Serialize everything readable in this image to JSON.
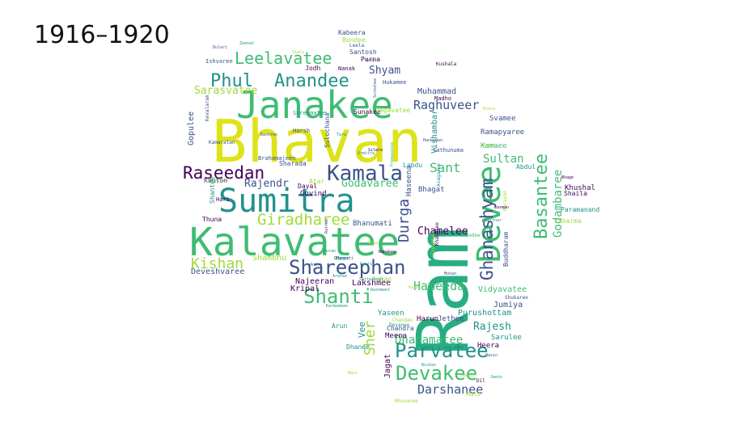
{
  "title": "1916–1920",
  "palette": {
    "dark_purple": "#440154",
    "indigo": "#3b528b",
    "teal": "#21918c",
    "green": "#3fbc73",
    "sea_green": "#27ad81",
    "lime": "#a0da39",
    "yellow": "#dde318"
  },
  "words": [
    {
      "text": "Bhavan",
      "color": "yellow"
    },
    {
      "text": "Ram",
      "color": "sea_green"
    },
    {
      "text": "Sumitra",
      "color": "teal"
    },
    {
      "text": "Kalavatee",
      "color": "green"
    },
    {
      "text": "Janakee",
      "color": "green"
    },
    {
      "text": "Devee",
      "color": "green"
    },
    {
      "text": "Kamala",
      "color": "indigo"
    },
    {
      "text": "Raseedan",
      "color": "dark_purple"
    },
    {
      "text": "Shareephan",
      "color": "indigo"
    },
    {
      "text": "Ghanashyam",
      "color": "indigo"
    },
    {
      "text": "Parvatee",
      "color": "teal"
    },
    {
      "text": "Devakee",
      "color": "green"
    },
    {
      "text": "Basantee",
      "color": "green"
    },
    {
      "text": "Shanti",
      "color": "green"
    },
    {
      "text": "Anandee",
      "color": "teal"
    },
    {
      "text": "Phul",
      "color": "teal"
    },
    {
      "text": "Leelavatee",
      "color": "green"
    },
    {
      "text": "Giradharee",
      "color": "lime"
    },
    {
      "text": "Kishan",
      "color": "lime"
    },
    {
      "text": "Durga",
      "color": "indigo"
    },
    {
      "text": "Darshanee",
      "color": "indigo"
    },
    {
      "text": "Hameeda",
      "color": "green"
    },
    {
      "text": "Raghuveer",
      "color": "indigo"
    },
    {
      "text": "Dhanamatee",
      "color": "green"
    },
    {
      "text": "Sant",
      "color": "green"
    },
    {
      "text": "Sultan",
      "color": "green"
    },
    {
      "text": "Godambaree",
      "color": "green"
    },
    {
      "text": "Chamelee",
      "color": "dark_purple"
    },
    {
      "text": "Rajendr",
      "color": "indigo"
    },
    {
      "text": "Godavaree",
      "color": "green"
    },
    {
      "text": "Sher",
      "color": "lime"
    },
    {
      "text": "Shyam",
      "color": "indigo"
    },
    {
      "text": "Rajesh",
      "color": "teal"
    },
    {
      "text": "Sarasvatee",
      "color": "lime"
    },
    {
      "text": "Gopulee",
      "color": "indigo"
    },
    {
      "text": "Vishambar",
      "color": "teal"
    },
    {
      "text": "Muhammad",
      "color": "indigo"
    },
    {
      "text": "Shambhu",
      "color": "lime"
    },
    {
      "text": "Deveshvaree",
      "color": "indigo"
    },
    {
      "text": "Najeeran",
      "color": "dark_purple"
    },
    {
      "text": "Kripal",
      "color": "dark_purple"
    },
    {
      "text": "Lakshmee",
      "color": "dark_purple"
    },
    {
      "text": "Vidyavatee",
      "color": "green"
    },
    {
      "text": "Purushottam",
      "color": "teal"
    },
    {
      "text": "Jumiya",
      "color": "indigo"
    },
    {
      "text": "Heera",
      "color": "dark_purple"
    },
    {
      "text": "Sarulee",
      "color": "teal"
    },
    {
      "text": "Jagat",
      "color": "dark_purple"
    },
    {
      "text": "Meena",
      "color": "dark_purple"
    },
    {
      "text": "Vee",
      "color": "teal"
    },
    {
      "text": "Yaseen",
      "color": "teal"
    },
    {
      "text": "Sohan",
      "color": "lime"
    },
    {
      "text": "Bhanumati",
      "color": "indigo"
    },
    {
      "text": "Govind",
      "color": "dark_purple"
    },
    {
      "text": "Atar",
      "color": "lime"
    },
    {
      "text": "Dayal",
      "color": "dark_purple"
    },
    {
      "text": "Sharada",
      "color": "indigo"
    },
    {
      "text": "Svamee",
      "color": "indigo"
    },
    {
      "text": "Ramapyaree",
      "color": "indigo"
    },
    {
      "text": "Kamaee",
      "color": "green"
    },
    {
      "text": "Abdul",
      "color": "teal"
    },
    {
      "text": "Khushal",
      "color": "dark_purple"
    },
    {
      "text": "Shaila",
      "color": "dark_purple"
    },
    {
      "text": "Paramanand",
      "color": "teal"
    },
    {
      "text": "Dharma",
      "color": "lime"
    },
    {
      "text": "Bhagat",
      "color": "indigo"
    },
    {
      "text": "Labdu",
      "color": "teal"
    },
    {
      "text": "Haseena",
      "color": "indigo"
    },
    {
      "text": "Kabeera",
      "color": "indigo"
    },
    {
      "text": "Bundee",
      "color": "lime"
    },
    {
      "text": "Leela",
      "color": "indigo"
    },
    {
      "text": "Santosh",
      "color": "indigo"
    },
    {
      "text": "Purna",
      "color": "dark_purple"
    },
    {
      "text": "Jodh",
      "color": "dark_purple"
    },
    {
      "text": "Nanak",
      "color": "dark_purple"
    },
    {
      "text": "Ishvaree",
      "color": "indigo"
    },
    {
      "text": "Hukamee",
      "color": "indigo"
    },
    {
      "text": "Sunakee",
      "color": "dark_purple"
    },
    {
      "text": "Jagavatee",
      "color": "lime"
    },
    {
      "text": "Shreematee",
      "color": "teal"
    },
    {
      "text": "Madho",
      "color": "dark_purple"
    },
    {
      "text": "Kevalaram",
      "color": "indigo"
    },
    {
      "text": "Kamaratan",
      "color": "indigo"
    },
    {
      "text": "Brahamajeen",
      "color": "indigo"
    },
    {
      "text": "Sujanee",
      "color": "lime"
    },
    {
      "text": "Kanton",
      "color": "indigo"
    },
    {
      "text": "Hari",
      "color": "dark_purple"
    },
    {
      "text": "Thuna",
      "color": "dark_purple"
    },
    {
      "text": "Shantee",
      "color": "teal"
    },
    {
      "text": "Chandra",
      "color": "indigo"
    },
    {
      "text": "Chandan",
      "color": "lime"
    },
    {
      "text": "Devanee",
      "color": "teal"
    },
    {
      "text": "Harun",
      "color": "dark_purple"
    },
    {
      "text": "Jethee",
      "color": "indigo"
    },
    {
      "text": "Dhanee",
      "color": "teal"
    },
    {
      "text": "Arun",
      "color": "teal"
    },
    {
      "text": "Meer",
      "color": "teal"
    },
    {
      "text": "Malo",
      "color": "lime"
    },
    {
      "text": "Dil",
      "color": "dark_purple"
    },
    {
      "text": "Bhavanee",
      "color": "lime"
    },
    {
      "text": "Kushala",
      "color": "dark_purple"
    },
    {
      "text": "Harsh",
      "color": "indigo"
    },
    {
      "text": "Sulochana",
      "color": "indigo"
    },
    {
      "text": "Tathunuma",
      "color": "indigo"
    },
    {
      "text": "Asagaree",
      "color": "teal"
    },
    {
      "text": "Narayan",
      "color": "lime"
    },
    {
      "text": "Buddharam",
      "color": "indigo"
    },
    {
      "text": "Shukaree",
      "color": "indigo"
    },
    {
      "text": "Khashtee",
      "color": "dark_purple"
    },
    {
      "text": "Jayantee",
      "color": "lime"
    },
    {
      "text": "Keedee",
      "color": "green"
    },
    {
      "text": "Satteshvar",
      "color": "teal"
    },
    {
      "text": "Urmitra",
      "color": "teal"
    },
    {
      "text": "Premavatee",
      "color": "green"
    },
    {
      "text": "Haneedan",
      "color": "indigo"
    },
    {
      "text": "Aasha",
      "color": "lime"
    },
    {
      "text": "Atara",
      "color": "lime"
    },
    {
      "text": "Saltnar",
      "color": "teal"
    },
    {
      "text": "Bhage",
      "color": "dark_purple"
    },
    {
      "text": "Sureshee",
      "color": "indigo"
    },
    {
      "text": "Dashree",
      "color": "indigo"
    },
    {
      "text": "Ratnee",
      "color": "indigo"
    },
    {
      "text": "Aratee",
      "color": "teal"
    },
    {
      "text": "Karmadeen",
      "color": "teal"
    },
    {
      "text": "Mani",
      "color": "lime"
    },
    {
      "text": "Dharmati",
      "color": "indigo"
    },
    {
      "text": "Puran",
      "color": "teal"
    },
    {
      "text": "Anita",
      "color": "indigo"
    },
    {
      "text": "Dashmeet",
      "color": "teal"
    },
    {
      "text": "Nanakee",
      "color": "dark_purple"
    },
    {
      "text": "Kajal",
      "color": "lime"
    },
    {
      "text": "Bishan",
      "color": "teal"
    },
    {
      "text": "Ganesh",
      "color": "lime"
    },
    {
      "text": "Hasin",
      "color": "indigo"
    },
    {
      "text": "Jeeto",
      "color": "teal"
    },
    {
      "text": "Laxman",
      "color": "dark_purple"
    },
    {
      "text": "Mohan",
      "color": "indigo"
    },
    {
      "text": "Gauri",
      "color": "teal"
    },
    {
      "text": "Rupa",
      "color": "lime"
    },
    {
      "text": "Sitara",
      "color": "dark_purple"
    },
    {
      "text": "Tara",
      "color": "teal"
    },
    {
      "text": "Usha",
      "color": "indigo"
    },
    {
      "text": "Vimla",
      "color": "lime"
    },
    {
      "text": "Zeenat",
      "color": "teal"
    },
    {
      "text": "Dulari",
      "color": "indigo"
    },
    {
      "text": "Phoolan",
      "color": "green"
    },
    {
      "text": "Chanda",
      "color": "teal"
    },
    {
      "text": "Mangal",
      "color": "dark_purple"
    },
    {
      "text": "Kesar",
      "color": "lime"
    },
    {
      "text": "Indra",
      "color": "indigo"
    }
  ]
}
